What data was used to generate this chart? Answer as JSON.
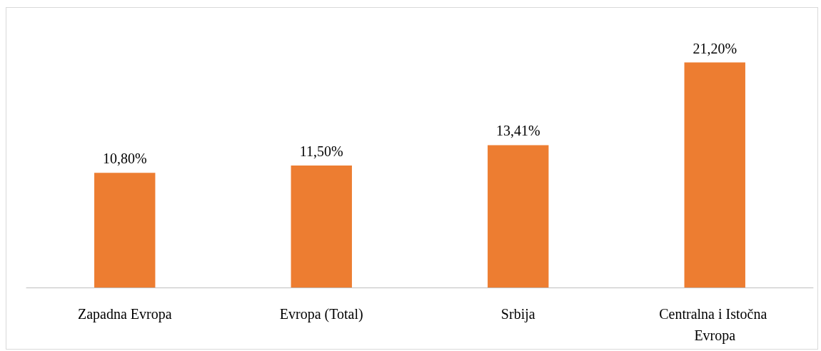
{
  "chart_data": {
    "type": "bar",
    "categories": [
      "Zapadna Evropa",
      "Evropa (Total)",
      "Srbija",
      "Centralna i Istočna Evropa"
    ],
    "values": [
      10.8,
      11.5,
      13.41,
      21.2
    ],
    "value_labels": [
      "10,80%",
      "11,50%",
      "13,41%",
      "21,20%"
    ],
    "color": "#ed7d31"
  }
}
